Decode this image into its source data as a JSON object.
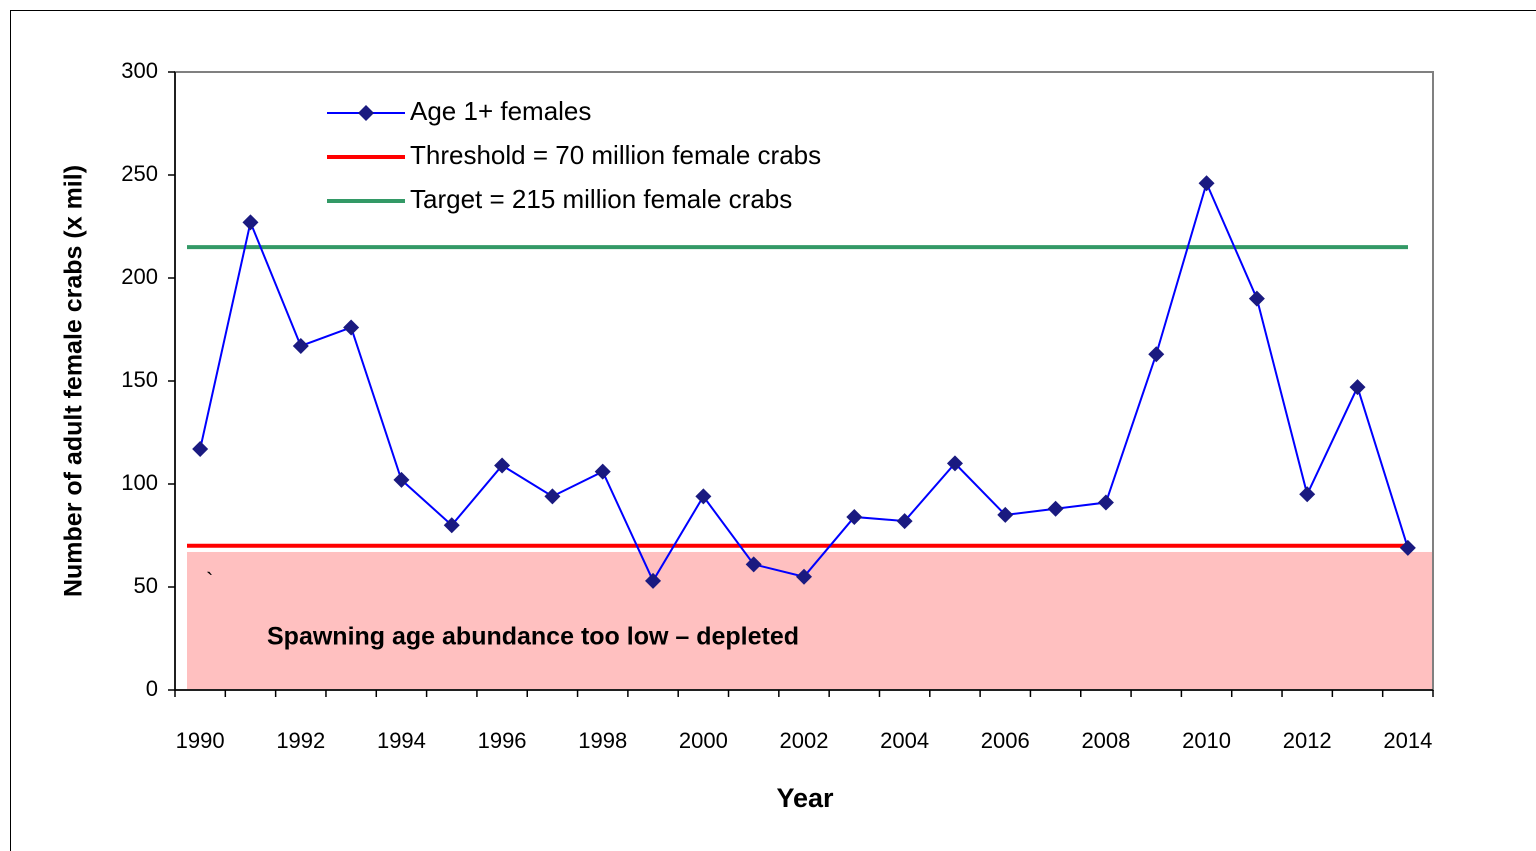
{
  "chart_data": {
    "type": "line",
    "xlabel": "Year",
    "ylabel": "Number of adult female crabs (x mil)",
    "categories": [
      "1990",
      null,
      "1992",
      null,
      "1994",
      null,
      "1996",
      null,
      "1998",
      null,
      "2000",
      null,
      "2002",
      null,
      "2004",
      null,
      "2006",
      null,
      "2008",
      null,
      "2010",
      null,
      "2012",
      null,
      "2014"
    ],
    "series": [
      {
        "name": "Age 1+ females",
        "color": "#0000ff",
        "marker_color": "#1a1a80",
        "values": [
          117,
          227,
          167,
          176,
          102,
          80,
          109,
          94,
          106,
          53,
          94,
          61,
          55,
          84,
          82,
          110,
          85,
          88,
          91,
          163,
          246,
          190,
          95,
          147,
          69
        ]
      }
    ],
    "reference_lines": [
      {
        "name": "Threshold = 70 million female crabs",
        "value": 70,
        "color": "#ff0000"
      },
      {
        "name": "Target = 215 million female crabs",
        "value": 215,
        "color": "#339966"
      }
    ],
    "shaded_region": {
      "label": "Spawning age abundance too low – depleted",
      "range": [
        0,
        67
      ],
      "color": "#ffc0c0"
    },
    "annotations": [
      "`"
    ],
    "ylim": [
      0,
      300
    ],
    "yticks": [
      0,
      50,
      100,
      150,
      200,
      250,
      300
    ]
  }
}
